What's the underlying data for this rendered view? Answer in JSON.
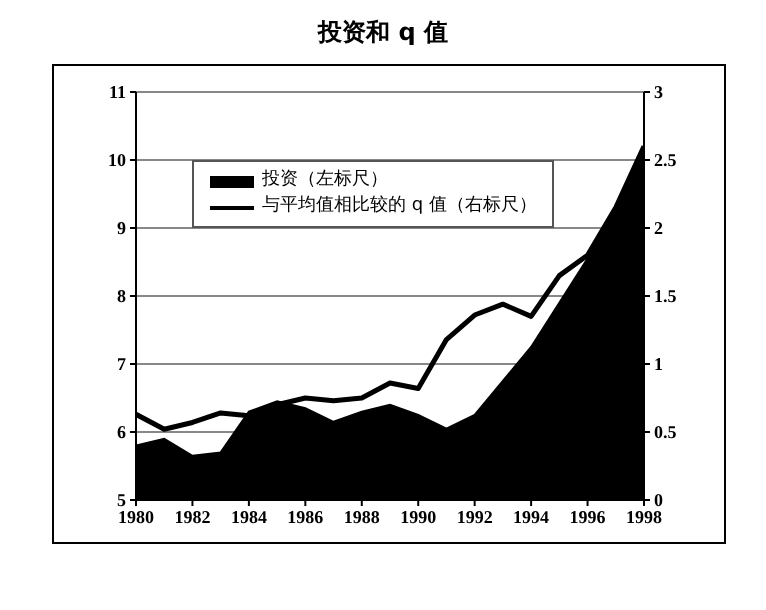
{
  "chart_data": {
    "type": "area",
    "title": "投资和 q 值",
    "x": [
      1980,
      1981,
      1982,
      1983,
      1984,
      1985,
      1986,
      1987,
      1988,
      1989,
      1990,
      1991,
      1992,
      1993,
      1994,
      1995,
      1996,
      1997,
      1998
    ],
    "series": [
      {
        "name": "投资（左标尺）",
        "color": "#000000",
        "values": [
          5.8,
          5.9,
          5.65,
          5.7,
          6.3,
          6.45,
          6.35,
          6.15,
          6.3,
          6.4,
          6.25,
          6.05,
          6.25,
          6.75,
          7.25,
          7.9,
          8.55,
          9.3,
          10.2
        ]
      },
      {
        "name": "与平均值相比较的 q 值（右标尺）",
        "type": "line",
        "axis": "y2",
        "color": "#000000",
        "values": [
          0.63,
          0.52,
          0.57,
          0.64,
          0.62,
          0.7,
          0.75,
          0.73,
          0.75,
          0.86,
          0.82,
          1.18,
          1.36,
          1.44,
          1.35,
          1.65,
          1.8,
          2.15,
          2.6
        ]
      }
    ],
    "xlim": [
      1980,
      1998
    ],
    "xticks": [
      1980,
      1982,
      1984,
      1986,
      1988,
      1990,
      1992,
      1994,
      1996,
      1998
    ],
    "ylim": [
      5,
      11
    ],
    "yticks": [
      5,
      6,
      7,
      8,
      9,
      10,
      11
    ],
    "y2lim": [
      0,
      3
    ],
    "y2ticks": [
      0,
      0.5,
      1,
      1.5,
      2,
      2.5,
      3
    ],
    "grid": "y",
    "legend": "top left",
    "marker": "none",
    "line_style": "solid"
  }
}
